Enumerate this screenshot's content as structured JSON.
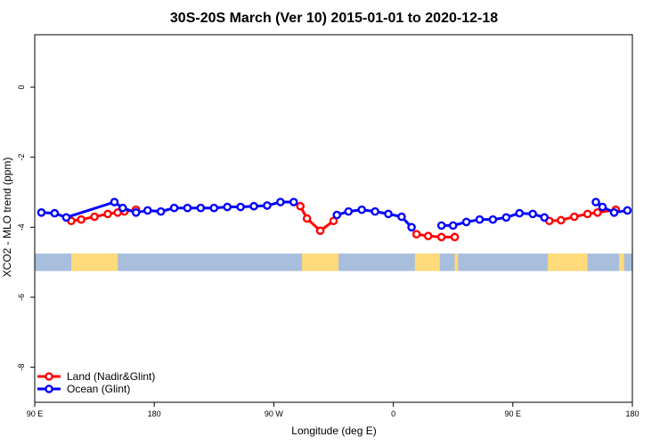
{
  "chart_data": {
    "type": "line",
    "title": "30S-20S March (Ver 10)   2015-01-01 to 2020-12-18",
    "xlabel": "Longitude (deg E)",
    "ylabel": "XCO2 - MLO trend (ppm)",
    "xlim": [
      0,
      360
    ],
    "ylim": [
      -9,
      1.5
    ],
    "x_ticks": [
      {
        "value": 0,
        "label": "90 E"
      },
      {
        "value": 72,
        "label": "180"
      },
      {
        "value": 144,
        "label": "90 W"
      },
      {
        "value": 216,
        "label": "0"
      },
      {
        "value": 288,
        "label": "90 E"
      },
      {
        "value": 360,
        "label": "180"
      }
    ],
    "y_ticks": [
      {
        "value": 0,
        "label": "0"
      },
      {
        "value": -2,
        "label": "-2"
      },
      {
        "value": -4,
        "label": "-4"
      },
      {
        "value": -6,
        "label": "-6"
      },
      {
        "value": -8,
        "label": "-8"
      }
    ],
    "legend": {
      "position": "bottom-left"
    },
    "series": [
      {
        "name": "Land (Nadir&Glint)",
        "color": "#ff0000",
        "segments": [
          [
            [
              22,
              -3.82
            ],
            [
              28,
              -3.78
            ],
            [
              36,
              -3.7
            ],
            [
              44,
              -3.62
            ],
            [
              50,
              -3.58
            ],
            [
              54,
              -3.55
            ],
            [
              61,
              -3.5
            ]
          ],
          [
            [
              160,
              -3.4
            ],
            [
              164,
              -3.75
            ],
            [
              172,
              -4.1
            ],
            [
              180,
              -3.82
            ]
          ],
          [
            [
              230,
              -4.2
            ],
            [
              237,
              -4.25
            ],
            [
              245,
              -4.28
            ],
            [
              253,
              -4.28
            ]
          ],
          [
            [
              310,
              -3.82
            ],
            [
              317,
              -3.8
            ],
            [
              325,
              -3.7
            ],
            [
              333,
              -3.62
            ],
            [
              339,
              -3.58
            ],
            [
              350,
              -3.5
            ]
          ]
        ]
      },
      {
        "name": "Ocean (Glint)",
        "color": "#0000ff",
        "segments": [
          [
            [
              4,
              -3.58
            ],
            [
              12,
              -3.6
            ],
            [
              19,
              -3.72
            ],
            [
              48,
              -3.28
            ],
            [
              53,
              -3.45
            ],
            [
              61,
              -3.58
            ],
            [
              68,
              -3.52
            ],
            [
              76,
              -3.55
            ],
            [
              84,
              -3.45
            ],
            [
              92,
              -3.45
            ],
            [
              100,
              -3.45
            ],
            [
              108,
              -3.45
            ],
            [
              116,
              -3.42
            ],
            [
              124,
              -3.42
            ],
            [
              132,
              -3.4
            ],
            [
              140,
              -3.38
            ],
            [
              148,
              -3.28
            ],
            [
              156,
              -3.28
            ]
          ],
          [
            [
              182,
              -3.65
            ],
            [
              189,
              -3.55
            ],
            [
              197,
              -3.5
            ],
            [
              205,
              -3.55
            ],
            [
              213,
              -3.62
            ],
            [
              221,
              -3.7
            ],
            [
              227,
              -4.0
            ]
          ],
          [
            [
              245,
              -3.95
            ],
            [
              252,
              -3.95
            ],
            [
              260,
              -3.85
            ],
            [
              268,
              -3.78
            ],
            [
              276,
              -3.78
            ],
            [
              284,
              -3.72
            ],
            [
              292,
              -3.6
            ],
            [
              300,
              -3.62
            ],
            [
              307,
              -3.72
            ]
          ],
          [
            [
              338,
              -3.28
            ],
            [
              342,
              -3.42
            ],
            [
              349,
              -3.58
            ],
            [
              357,
              -3.52
            ]
          ]
        ]
      }
    ],
    "land_mask_band": {
      "y_range": [
        -5.25,
        -4.75
      ],
      "ocean_color": "#a8bedd",
      "land_color": "#ffda7a",
      "land_intervals": [
        [
          22,
          50
        ],
        [
          161,
          183
        ],
        [
          229,
          244
        ],
        [
          253,
          255
        ],
        [
          309,
          333
        ],
        [
          352,
          355
        ]
      ]
    }
  }
}
